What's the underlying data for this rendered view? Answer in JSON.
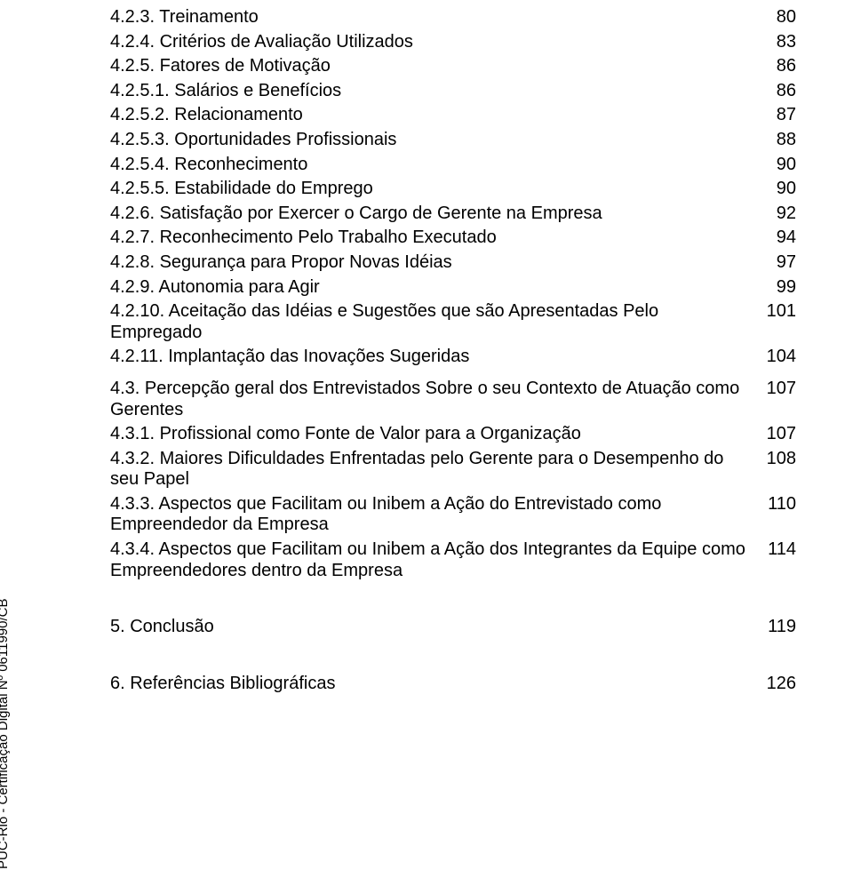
{
  "sidecaption": "PUC-Rio - Certificação Digital Nº 0611990/CB",
  "textColor": "#000000",
  "background": "#ffffff",
  "fontFamily": "Arial, Helvetica, sans-serif",
  "fontSizePt": 15,
  "entries": [
    {
      "label": "4.2.3. Treinamento",
      "page": "80"
    },
    {
      "label": "4.2.4. Critérios de Avaliação Utilizados",
      "page": "83"
    },
    {
      "label": "4.2.5. Fatores de Motivação",
      "page": "86"
    },
    {
      "label": "4.2.5.1. Salários e Benefícios",
      "page": "86"
    },
    {
      "label": "4.2.5.2. Relacionamento",
      "page": "87"
    },
    {
      "label": "4.2.5.3. Oportunidades Profissionais",
      "page": "88"
    },
    {
      "label": "4.2.5.4. Reconhecimento",
      "page": "90"
    },
    {
      "label": "4.2.5.5. Estabilidade do Emprego",
      "page": "90"
    },
    {
      "label": "4.2.6. Satisfação por Exercer o Cargo de Gerente na Empresa",
      "page": "92"
    },
    {
      "label": "4.2.7. Reconhecimento Pelo Trabalho Executado",
      "page": "94"
    },
    {
      "label": "4.2.8. Segurança para Propor Novas Idéias",
      "page": "97"
    },
    {
      "label": "4.2.9. Autonomia para Agir",
      "page": "99"
    },
    {
      "label": "4.2.10. Aceitação das Idéias e Sugestões que são Apresentadas Pelo Empregado",
      "page": "101"
    },
    {
      "label": "4.2.11. Implantação das Inovações Sugeridas",
      "page": "104"
    },
    {
      "label": "4.3. Percepção geral dos Entrevistados Sobre o seu Contexto de Atuação como Gerentes",
      "page": "107"
    },
    {
      "label": "4.3.1. Profissional como Fonte de Valor para a Organização",
      "page": "107"
    },
    {
      "label": "4.3.2. Maiores Dificuldades Enfrentadas pelo Gerente para o Desempenho do seu Papel",
      "page": "108"
    },
    {
      "label": "4.3.3. Aspectos que Facilitam ou Inibem a Ação do Entrevistado como Empreendedor da Empresa",
      "page": "110"
    },
    {
      "label": "4.3.4. Aspectos que Facilitam ou Inibem a Ação dos Integrantes da Equipe como Empreendedores dentro da Empresa",
      "page": "114"
    }
  ],
  "sections": [
    {
      "label": "5. Conclusão",
      "page": "119"
    },
    {
      "label": "6. Referências Bibliográficas",
      "page": "126"
    }
  ]
}
